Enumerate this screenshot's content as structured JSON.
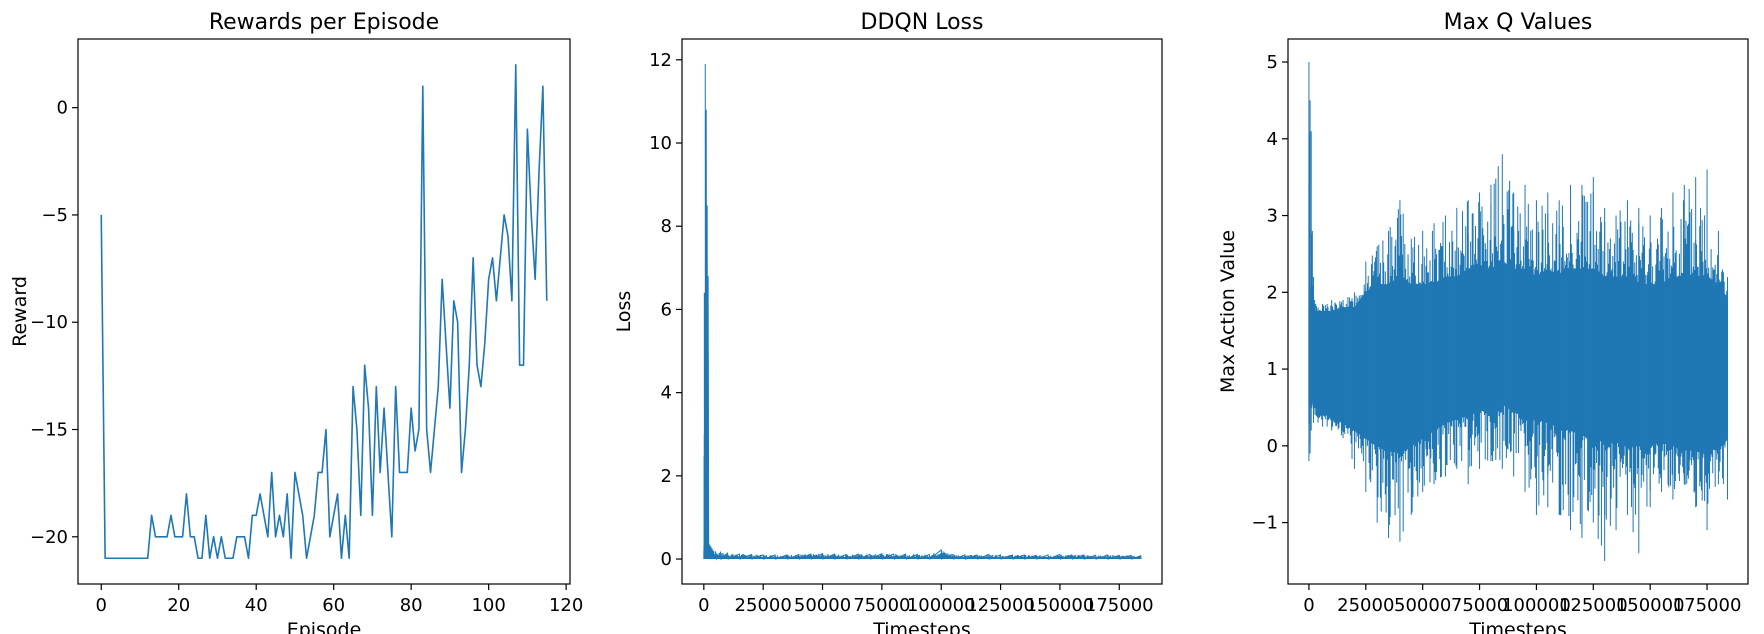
{
  "accent_color": "#1f77b4",
  "chart_data": [
    {
      "type": "line",
      "title": "Rewards per Episode",
      "xlabel": "Episode",
      "ylabel": "Reward",
      "xlim": [
        -6,
        121
      ],
      "ylim": [
        -22.2,
        3.2
      ],
      "xticks": [
        0,
        20,
        40,
        60,
        80,
        100,
        120
      ],
      "yticks": [
        -20,
        -15,
        -10,
        -5,
        0
      ],
      "grid": false,
      "series": [
        {
          "values": [
            -5,
            -21,
            -21,
            -21,
            -21,
            -21,
            -21,
            -21,
            -21,
            -21,
            -21,
            -21,
            -21,
            -19,
            -20,
            -20,
            -20,
            -20,
            -19,
            -20,
            -20,
            -20,
            -18,
            -20,
            -20,
            -21,
            -21,
            -19,
            -21,
            -20,
            -21,
            -20,
            -21,
            -21,
            -21,
            -20,
            -20,
            -20,
            -21,
            -19,
            -19,
            -18,
            -19,
            -20,
            -17,
            -20,
            -19,
            -20,
            -18,
            -21,
            -17,
            -18,
            -19,
            -21,
            -20,
            -19,
            -17,
            -17,
            -15,
            -20,
            -19,
            -18,
            -21,
            -19,
            -21,
            -13,
            -15,
            -19,
            -12,
            -14,
            -19,
            -13,
            -17,
            -14,
            -17,
            -20,
            -13,
            -17,
            -17,
            -17,
            -14,
            -16,
            -15,
            1,
            -15,
            -17,
            -15,
            -13,
            -8,
            -11,
            -14,
            -9,
            -10,
            -17,
            -15,
            -12,
            -7,
            -12,
            -13,
            -11,
            -8,
            -7,
            -9,
            -7,
            -5,
            -6,
            -9,
            2,
            -12,
            -12,
            -1,
            -5,
            -8,
            -3,
            1,
            -9
          ]
        }
      ]
    },
    {
      "type": "line",
      "title": "DDQN Loss",
      "xlabel": "Timesteps",
      "ylabel": "Loss",
      "xlim": [
        -9200,
        193000
      ],
      "ylim": [
        -0.6,
        12.5
      ],
      "xticks": [
        0,
        25000,
        50000,
        75000,
        100000,
        125000,
        150000,
        175000
      ],
      "yticks": [
        0,
        2,
        4,
        6,
        8,
        10,
        12
      ],
      "grid": false,
      "series": [
        {
          "x": [
            0,
            200,
            400,
            600,
            800,
            1000,
            1200,
            1400,
            1600,
            1800,
            2000,
            2200,
            2500,
            3000,
            3500,
            4000,
            5000,
            7000,
            10000,
            15000,
            20000,
            25000,
            30000,
            35000,
            40000,
            45000,
            50000,
            55000,
            60000,
            65000,
            70000,
            75000,
            80000,
            85000,
            90000,
            95000,
            100000,
            105000,
            110000,
            115000,
            120000,
            125000,
            130000,
            135000,
            140000,
            145000,
            150000,
            155000,
            160000,
            165000,
            170000,
            175000,
            180000,
            184000
          ],
          "values": [
            0.3,
            6.4,
            2.0,
            11.9,
            1.0,
            10.8,
            0.5,
            8.5,
            0.3,
            6.8,
            0.4,
            0.2,
            0.35,
            0.25,
            0.2,
            0.15,
            0.15,
            0.12,
            0.1,
            0.08,
            0.07,
            0.05,
            0.05,
            0.05,
            0.06,
            0.06,
            0.07,
            0.06,
            0.06,
            0.07,
            0.06,
            0.08,
            0.06,
            0.07,
            0.06,
            0.06,
            0.2,
            0.06,
            0.05,
            0.05,
            0.06,
            0.05,
            0.05,
            0.05,
            0.04,
            0.05,
            0.06,
            0.05,
            0.05,
            0.04,
            0.05,
            0.04,
            0.04,
            0.03
          ],
          "envelope_upper": [
            0.3,
            6.4,
            2.0,
            11.9,
            1.0,
            10.8,
            0.5,
            8.5,
            0.3,
            6.8,
            0.4,
            0.3,
            0.35,
            0.3,
            0.25,
            0.2,
            0.18,
            0.16,
            0.14,
            0.12,
            0.11,
            0.1,
            0.1,
            0.1,
            0.11,
            0.12,
            0.13,
            0.12,
            0.11,
            0.12,
            0.11,
            0.13,
            0.12,
            0.12,
            0.11,
            0.11,
            0.22,
            0.11,
            0.1,
            0.1,
            0.11,
            0.1,
            0.1,
            0.1,
            0.09,
            0.1,
            0.11,
            0.1,
            0.1,
            0.09,
            0.1,
            0.09,
            0.09,
            0.08
          ]
        }
      ]
    },
    {
      "type": "line",
      "title": "Max Q Values",
      "xlabel": "Timesteps",
      "ylabel": "Max Action Value",
      "xlim": [
        -9200,
        193000
      ],
      "ylim": [
        -1.8,
        5.3
      ],
      "xticks": [
        0,
        25000,
        50000,
        75000,
        100000,
        125000,
        150000,
        175000
      ],
      "yticks": [
        -1,
        0,
        1,
        2,
        3,
        4,
        5
      ],
      "grid": false,
      "series": [
        {
          "x": [
            0,
            500,
            1000,
            1500,
            2000,
            2500,
            3000,
            4000,
            6000,
            8000,
            10000,
            15000,
            20000,
            25000,
            30000,
            35000,
            40000,
            45000,
            50000,
            55000,
            60000,
            65000,
            70000,
            75000,
            80000,
            85000,
            90000,
            95000,
            100000,
            105000,
            110000,
            115000,
            120000,
            125000,
            130000,
            135000,
            140000,
            145000,
            150000,
            155000,
            160000,
            165000,
            170000,
            175000,
            180000,
            184000
          ],
          "upper": [
            5.0,
            4.5,
            4.1,
            2.8,
            2.2,
            1.9,
            1.85,
            1.8,
            1.85,
            1.85,
            1.9,
            1.9,
            2.0,
            2.4,
            2.6,
            2.8,
            3.2,
            2.7,
            2.8,
            2.9,
            3.0,
            3.1,
            3.2,
            3.3,
            3.4,
            3.8,
            3.3,
            3.4,
            3.2,
            3.3,
            3.2,
            3.4,
            3.4,
            3.5,
            3.1,
            3.0,
            3.2,
            3.1,
            3.0,
            3.1,
            3.3,
            3.4,
            3.5,
            3.6,
            2.8,
            2.2
          ],
          "lower": [
            -0.2,
            -0.1,
            0.2,
            0.7,
            0.3,
            0.5,
            0.4,
            0.3,
            0.25,
            0.25,
            0.2,
            0.1,
            -0.3,
            -0.6,
            -1.0,
            -1.2,
            -1.25,
            -0.9,
            -0.6,
            -0.5,
            -0.4,
            -0.3,
            -0.5,
            -0.3,
            -0.2,
            -0.3,
            -0.4,
            -0.6,
            -0.9,
            -0.8,
            -0.9,
            -1.1,
            -1.2,
            -1.0,
            -1.5,
            -1.1,
            -0.9,
            -1.4,
            -0.8,
            -0.6,
            -0.7,
            -0.5,
            -0.8,
            -1.1,
            -0.5,
            -0.7
          ],
          "band_upper": [
            1.8,
            1.8,
            1.75,
            1.75,
            1.75,
            1.75,
            1.75,
            1.75,
            1.75,
            1.75,
            1.75,
            1.8,
            1.8,
            2.0,
            2.1,
            2.1,
            2.2,
            2.1,
            2.1,
            2.1,
            2.2,
            2.2,
            2.3,
            2.3,
            2.3,
            2.4,
            2.3,
            2.3,
            2.2,
            2.3,
            2.2,
            2.3,
            2.3,
            2.3,
            2.2,
            2.2,
            2.2,
            2.1,
            2.1,
            2.1,
            2.2,
            2.2,
            2.2,
            2.2,
            2.1,
            1.9
          ],
          "band_lower": [
            0.5,
            0.5,
            0.6,
            0.6,
            0.5,
            0.5,
            0.5,
            0.4,
            0.4,
            0.4,
            0.35,
            0.3,
            0.2,
            0.1,
            0.0,
            -0.05,
            -0.1,
            0.0,
            0.1,
            0.2,
            0.3,
            0.35,
            0.4,
            0.45,
            0.5,
            0.55,
            0.45,
            0.4,
            0.35,
            0.3,
            0.25,
            0.2,
            0.15,
            0.1,
            0.05,
            0.05,
            0.0,
            0.0,
            0.0,
            0.05,
            0.0,
            -0.05,
            -0.05,
            -0.1,
            0.0,
            0.1
          ]
        }
      ]
    }
  ]
}
